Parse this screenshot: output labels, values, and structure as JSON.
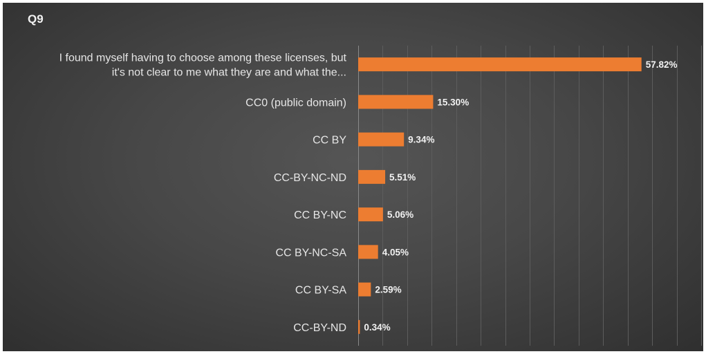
{
  "chart_data": {
    "type": "bar",
    "orientation": "horizontal",
    "title": "Q9",
    "categories": [
      "I found myself having to choose among these licenses, but it's not clear to me what they are and what the...",
      "CC0 (public domain)",
      "CC BY",
      "CC-BY-NC-ND",
      "CC BY-NC",
      "CC BY-NC-SA",
      "CC BY-SA",
      "CC-BY-ND"
    ],
    "category_lines": [
      [
        "I found myself having to choose among these licenses, but",
        "it's not clear to me what they are and what the..."
      ],
      [
        "CC0 (public domain)"
      ],
      [
        "CC BY"
      ],
      [
        "CC-BY-NC-ND"
      ],
      [
        "CC BY-NC"
      ],
      [
        "CC BY-NC-SA"
      ],
      [
        "CC BY-SA"
      ],
      [
        "CC-BY-ND"
      ]
    ],
    "values": [
      57.82,
      15.3,
      9.34,
      5.51,
      5.06,
      4.05,
      2.59,
      0.34
    ],
    "value_labels": [
      "57.82%",
      "15.30%",
      "9.34%",
      "5.51%",
      "5.06%",
      "4.05%",
      "2.59%",
      "0.34%"
    ],
    "xlim": [
      0,
      70
    ],
    "xlabel": "",
    "ylabel": "",
    "grid": true,
    "legend": "none",
    "bar_color": "#ed7d31",
    "background_color": "#444444"
  }
}
